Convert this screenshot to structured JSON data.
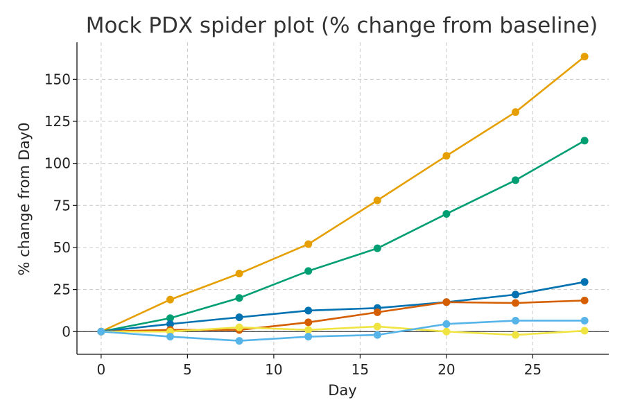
{
  "chart_data": {
    "type": "line",
    "title": "Mock PDX spider plot (% change from baseline)",
    "xlabel": "Day",
    "ylabel": "% change from Day0",
    "x": [
      0,
      4,
      8,
      12,
      16,
      20,
      24,
      28
    ],
    "xlim": [
      -1.4,
      29.4
    ],
    "ylim": [
      -13.5,
      172
    ],
    "xticks": [
      0,
      5,
      10,
      15,
      20,
      25
    ],
    "yticks": [
      0,
      25,
      50,
      75,
      100,
      125,
      150
    ],
    "grid": true,
    "zero_line": true,
    "series": [
      {
        "color": "#E69F00",
        "values": [
          0,
          19,
          34.5,
          52,
          78,
          104.5,
          130.5,
          163.5
        ]
      },
      {
        "color": "#009E73",
        "values": [
          0,
          8,
          20,
          36,
          49.5,
          70,
          90,
          113.5
        ]
      },
      {
        "color": "#0072B2",
        "values": [
          0,
          4.5,
          8.5,
          12.5,
          14,
          17.5,
          22,
          29.5
        ]
      },
      {
        "color": "#D55E00",
        "values": [
          0,
          1,
          1,
          5.5,
          11.5,
          17.5,
          17,
          18.5
        ]
      },
      {
        "color": "#F0E442",
        "values": [
          0,
          0,
          2.5,
          1,
          3,
          0,
          -2,
          0.5
        ]
      },
      {
        "color": "#56B4E9",
        "values": [
          0,
          -3,
          -5.5,
          -3,
          -2,
          4.5,
          6.5,
          6.5
        ]
      }
    ]
  }
}
